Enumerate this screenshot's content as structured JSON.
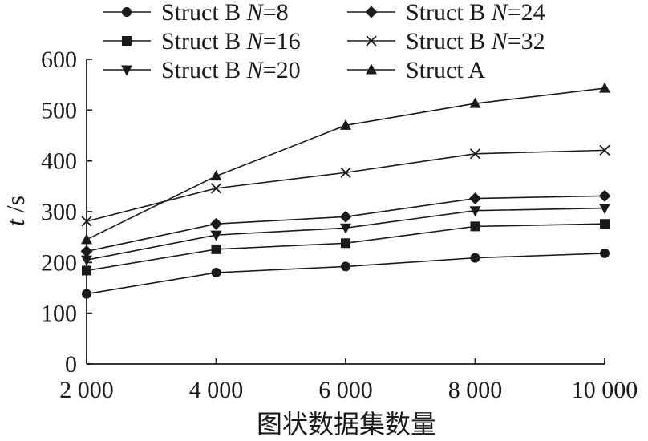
{
  "chart_data": {
    "type": "line",
    "x": [
      2000,
      4000,
      6000,
      8000,
      10000
    ],
    "x_tick_labels": [
      "2 000",
      "4 000",
      "6 000",
      "8 000",
      "10 000"
    ],
    "y_ticks": [
      0,
      100,
      200,
      300,
      400,
      500,
      600
    ],
    "xlim": [
      2000,
      10000
    ],
    "ylim": [
      0,
      600
    ],
    "xlabel": "图状数据集数量",
    "ylabel_italic": "t",
    "ylabel_unit": " /s",
    "grid": false,
    "legend_position": "top",
    "series": [
      {
        "name_prefix": "Struct B ",
        "name_var": "N",
        "name_value": "=8",
        "marker": "circle",
        "values": [
          138,
          180,
          192,
          209,
          218
        ]
      },
      {
        "name_prefix": "Struct B ",
        "name_var": "N",
        "name_value": "=24",
        "marker": "diamond",
        "values": [
          222,
          276,
          290,
          326,
          331
        ]
      },
      {
        "name_prefix": "Struct B ",
        "name_var": "N",
        "name_value": "=16",
        "marker": "square",
        "values": [
          184,
          226,
          238,
          271,
          276
        ]
      },
      {
        "name_prefix": "Struct B ",
        "name_var": "N",
        "name_value": "=32",
        "marker": "x",
        "values": [
          281,
          346,
          377,
          414,
          421
        ]
      },
      {
        "name_prefix": "Struct B ",
        "name_var": "N",
        "name_value": "=20",
        "marker": "triangle-down",
        "values": [
          205,
          254,
          268,
          302,
          307
        ]
      },
      {
        "name_prefix": "Struct A",
        "name_var": "",
        "name_value": "",
        "marker": "triangle-up",
        "values": [
          245,
          370,
          470,
          513,
          543
        ]
      }
    ]
  }
}
